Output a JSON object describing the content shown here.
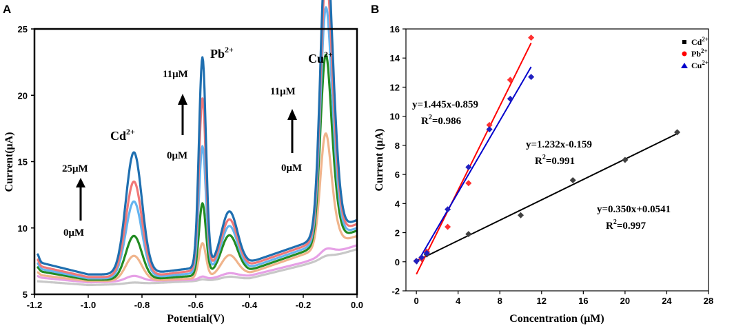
{
  "chart_data": [
    {
      "panel": "A",
      "type": "line",
      "xlabel": "Potential(V)",
      "ylabel": "Current(μA)",
      "xlim": [
        -1.2,
        0.0
      ],
      "ylim": [
        5,
        25
      ],
      "xticks": [
        "-1.2",
        "-1.0",
        "-0.8",
        "-0.6",
        "-0.4",
        "-0.2",
        "0.0"
      ],
      "yticks": [
        "5",
        "10",
        "15",
        "20",
        "25"
      ],
      "ion_labels": [
        {
          "base": "Cd",
          "sup": "2+"
        },
        {
          "base": "Pb",
          "sup": "2+"
        },
        {
          "base": "Cu",
          "sup": "2+"
        }
      ],
      "arrow_labels": [
        {
          "top": "25μM",
          "bottom": "0μM"
        },
        {
          "top": "11μM",
          "bottom": "0μM"
        },
        {
          "top": "11μM",
          "bottom": "0μM"
        }
      ],
      "series": [
        {
          "color": "#c8c8c8",
          "baseline": [
            6.0,
            5.7,
            5.8,
            6.0,
            6.2,
            7.2,
            8.4
          ],
          "peaks": [
            0.1,
            0.1,
            0.2,
            0.1,
            0.1
          ]
        },
        {
          "color": "#e6a0e6",
          "baseline": [
            6.3,
            5.9,
            6.0,
            6.1,
            6.4,
            7.4,
            8.7
          ],
          "peaks": [
            0.4,
            0.2,
            0.3,
            0.2,
            0.3
          ]
        },
        {
          "color": "#f0b48c",
          "baseline": [
            6.5,
            6.0,
            6.0,
            6.2,
            6.6,
            8.0,
            9.4
          ],
          "peaks": [
            1.9,
            2.6,
            1.5,
            5.5,
            3.5
          ]
        },
        {
          "color": "#228b22",
          "baseline": [
            6.8,
            6.1,
            6.1,
            6.4,
            6.8,
            8.2,
            9.8
          ],
          "peaks": [
            3.3,
            5.4,
            2.8,
            8.6,
            6.4
          ]
        },
        {
          "color": "#64b4f0",
          "baseline": [
            7.0,
            6.2,
            6.2,
            6.6,
            7.0,
            8.4,
            10.0
          ],
          "peaks": [
            5.8,
            9.5,
            3.3,
            9.6,
            9.0
          ]
        },
        {
          "color": "#f07878",
          "baseline": [
            7.2,
            6.3,
            6.3,
            6.8,
            7.2,
            8.6,
            10.3
          ],
          "peaks": [
            7.2,
            12.9,
            3.6,
            10.0,
            11.0
          ]
        },
        {
          "color": "#1f6fb0",
          "baseline": [
            7.5,
            6.5,
            6.5,
            7.0,
            7.4,
            8.8,
            10.6
          ],
          "peaks": [
            9.2,
            15.8,
            4.0,
            10.5,
            12.8
          ]
        }
      ],
      "peak_positions": [
        -0.83,
        -0.575,
        -0.475,
        -0.12,
        -0.105
      ]
    },
    {
      "panel": "B",
      "type": "scatter",
      "xlabel": "Concentration (μM)",
      "ylabel": "Current (μA)",
      "xlim": [
        -1,
        28
      ],
      "ylim": [
        -2,
        16
      ],
      "xticks": [
        "0",
        "4",
        "8",
        "12",
        "16",
        "20",
        "24",
        "28"
      ],
      "yticks": [
        "-2",
        "0",
        "2",
        "4",
        "6",
        "8",
        "10",
        "12",
        "14",
        "16"
      ],
      "legend": [
        {
          "base": "Cd",
          "sup": "2+",
          "marker": "square",
          "color": "#000000"
        },
        {
          "base": "Pb",
          "sup": "2+",
          "marker": "circle",
          "color": "#ff0000"
        },
        {
          "base": "Cu",
          "sup": "2+",
          "marker": "triangle",
          "color": "#0000cc"
        }
      ],
      "series": [
        {
          "name": "Cd2+",
          "color": "#404040",
          "line_color": "#000000",
          "x": [
            0,
            0.5,
            1,
            5,
            10,
            15,
            20,
            25
          ],
          "y": [
            0.05,
            0.2,
            0.5,
            1.9,
            3.2,
            5.6,
            7.0,
            8.9
          ],
          "fit": {
            "slope": 0.35,
            "intercept": 0.0541,
            "x_range": [
              0,
              25
            ]
          },
          "equation": "y=0.350x+0.0541",
          "r2_base": "R",
          "r2_value": "=0.997"
        },
        {
          "name": "Pb2+",
          "color": "#ff3030",
          "line_color": "#ff0000",
          "x": [
            0,
            0.5,
            1,
            3,
            5,
            7,
            9,
            11
          ],
          "y": [
            0.05,
            0.2,
            0.7,
            2.4,
            5.4,
            9.4,
            12.5,
            15.4
          ],
          "fit": {
            "slope": 1.445,
            "intercept": -0.859,
            "x_range": [
              0,
              11
            ]
          },
          "equation": "y=1.445x-0.859",
          "r2_base": "R",
          "r2_value": "=0.986"
        },
        {
          "name": "Cu2+",
          "color": "#2020c0",
          "line_color": "#0000cc",
          "x": [
            0,
            0.5,
            1,
            3,
            5,
            7,
            9,
            11
          ],
          "y": [
            0.05,
            0.3,
            0.6,
            3.6,
            6.5,
            9.1,
            11.2,
            12.7
          ],
          "fit": {
            "slope": 1.232,
            "intercept": -0.159,
            "x_range": [
              0,
              11
            ]
          },
          "equation": "y=1.232x-0.159",
          "r2_base": "R",
          "r2_value": "=0.991"
        }
      ]
    }
  ],
  "panel_labels": {
    "a": "A",
    "b": "B"
  }
}
